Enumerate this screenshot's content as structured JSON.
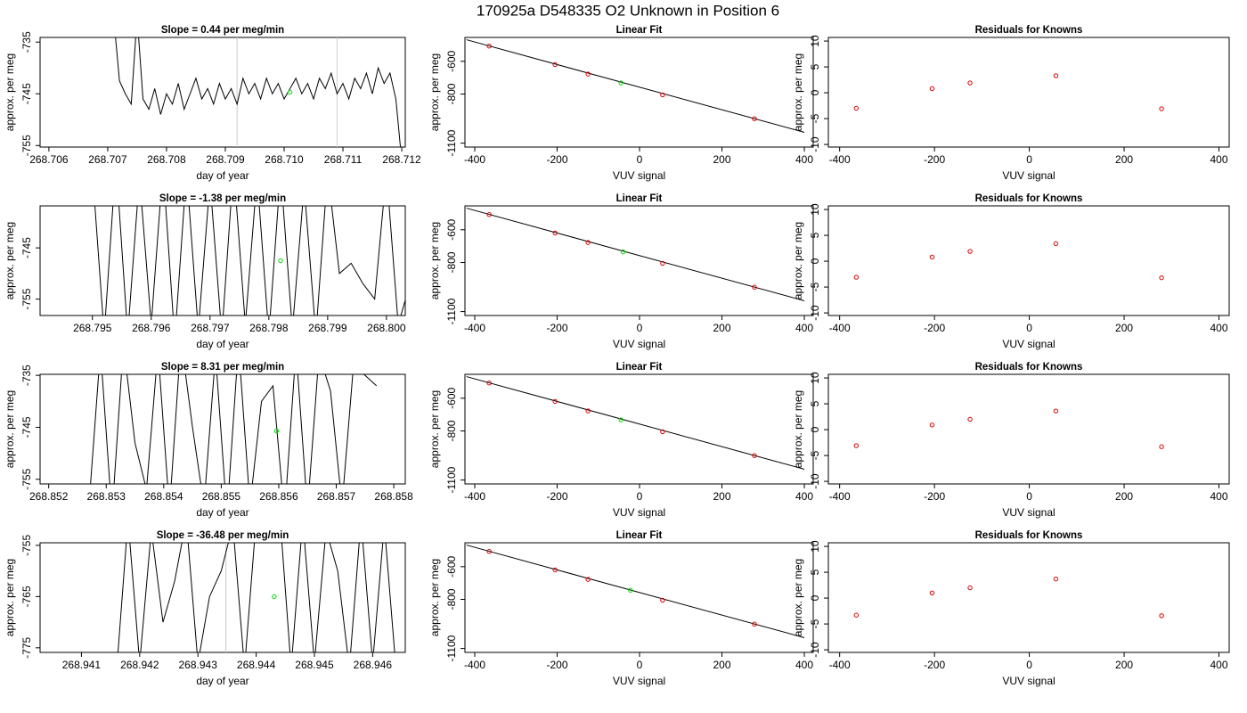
{
  "title": "170925a      D548335   O2 Unknown in Position  6",
  "chart_data": [
    {
      "type": "line",
      "title": "Slope =  0.44  per meg/min",
      "xlabel": "day of year",
      "ylabel": "approx. per meg",
      "xlim": [
        268.70585,
        268.71206
      ],
      "ylim": [
        -755.3,
        -734.1
      ],
      "xticks": [
        268.706,
        268.707,
        268.708,
        268.709,
        {
          "value": 268.71,
          "label": "268.710"
        },
        268.711,
        268.712
      ],
      "yticks": [
        -735,
        -745,
        -755
      ],
      "color": "#000000",
      "vlines": [
        268.7092,
        268.7109
      ],
      "vline_color": "#cccccc",
      "highlight": {
        "x": 268.7101,
        "y": -744.7,
        "color": "#00dd00"
      },
      "x": [
        268.7071,
        268.7072,
        268.7073,
        268.7074,
        268.7075,
        268.7076,
        268.7077,
        268.7078,
        268.7079,
        268.708,
        268.7081,
        268.7082,
        268.7083,
        268.7084,
        268.7085,
        268.7086,
        268.7087,
        268.7088,
        268.7089,
        268.709,
        268.7091,
        268.7092,
        268.7093,
        268.7094,
        268.7095,
        268.7096,
        268.7097,
        268.7098,
        268.7099,
        268.71,
        268.7101,
        268.7102,
        268.7103,
        268.7104,
        268.7105,
        268.7106,
        268.7107,
        268.7108,
        268.7109,
        268.711,
        268.7111,
        268.7112,
        268.7113,
        268.7114,
        268.7115,
        268.7116,
        268.7117,
        268.7118,
        268.7119,
        268.712
      ],
      "values": [
        -730,
        -742.5,
        -745,
        -747,
        -730,
        -746,
        -748,
        -744,
        -749,
        -745,
        -747,
        -743,
        -748,
        -745,
        -742,
        -746,
        -744,
        -747,
        -743,
        -746,
        -744,
        -747,
        -742,
        -745,
        -743,
        -746,
        -742,
        -745,
        -743,
        -746,
        -744,
        -742,
        -745,
        -743,
        -746,
        -742,
        -744,
        -741,
        -745,
        -743,
        -746,
        -742,
        -744,
        -741,
        -745,
        -740,
        -743,
        -741,
        -746,
        -758
      ]
    },
    {
      "type": "scatter",
      "title": "Linear Fit",
      "xlabel": "VUV signal",
      "ylabel": "approx. per meg",
      "xlim": [
        -423.8,
        421.6
      ],
      "ylim": [
        -1124,
        -454
      ],
      "xticks": [
        -400,
        -200,
        0,
        200,
        400
      ],
      "yticks": [
        -600,
        -800,
        -1100
      ],
      "color": "#dd0000",
      "x": [
        -365,
        -205,
        -125,
        56,
        279
      ],
      "values": [
        -507,
        -620,
        -678,
        -805,
        -951
      ],
      "highlight": {
        "x": -45,
        "y": -732,
        "color": "#00dd00"
      },
      "fit": {
        "x": [
          -420,
          400
        ],
        "y": [
          -468,
          -1034
        ]
      },
      "fit_color": "#000000"
    },
    {
      "type": "scatter",
      "title": "Residuals for Knowns",
      "xlabel": "VUV signal",
      "ylabel": "approx. per meg",
      "xlim": [
        -423.8,
        421.6
      ],
      "ylim": [
        -10.5,
        10.7
      ],
      "xticks": [
        -400,
        -200,
        0,
        200,
        400
      ],
      "yticks": [
        -10,
        -5,
        0,
        5,
        10
      ],
      "color": "#dd0000",
      "x": [
        -365,
        -205,
        -125,
        56,
        279
      ],
      "values": [
        -3,
        0.8,
        1.9,
        3.3,
        -3.1
      ]
    },
    {
      "type": "line",
      "title": "Slope =  -1.38  per meg/min",
      "xlabel": "day of year",
      "ylabel": "approx. per meg",
      "xlim": [
        268.79411,
        268.80032
      ],
      "ylim": [
        -758.2,
        -736.8
      ],
      "xticks": [
        268.795,
        268.796,
        268.797,
        268.798,
        268.799,
        {
          "value": 268.8,
          "label": "268.800"
        }
      ],
      "yticks": [
        -745,
        -755
      ],
      "color": "#000000",
      "highlight": {
        "x": 268.7982,
        "y": -747.5,
        "color": "#00dd00"
      },
      "x": [
        268.795,
        268.7952,
        268.7954,
        268.7956,
        268.7958,
        268.796,
        268.7962,
        268.7964,
        268.7966,
        268.7968,
        268.797,
        268.7972,
        268.7974,
        268.7976,
        268.7978,
        268.798,
        268.7982,
        268.7984,
        268.7986,
        268.7988,
        268.799,
        268.7992,
        268.7994,
        268.7996,
        268.7998,
        268.8,
        268.8002,
        268.8004
      ],
      "values": [
        -730,
        -762,
        -728,
        -762,
        -731,
        -760,
        -729,
        -763,
        -730,
        -761,
        -732,
        -762,
        -729,
        -760,
        -731,
        -762,
        -730,
        -761,
        -733,
        -762,
        -730,
        -750,
        -748,
        -752,
        -755,
        -730,
        -760,
        -752
      ]
    },
    {
      "type": "scatter",
      "title": "Linear Fit",
      "xlabel": "VUV signal",
      "ylabel": "approx. per meg",
      "xlim": [
        -423.8,
        421.6
      ],
      "ylim": [
        -1124,
        -454
      ],
      "xticks": [
        -400,
        -200,
        0,
        200,
        400
      ],
      "yticks": [
        -600,
        -800,
        -1100
      ],
      "color": "#dd0000",
      "x": [
        -365,
        -205,
        -125,
        56,
        279
      ],
      "values": [
        -507,
        -620,
        -678,
        -805,
        -951
      ],
      "highlight": {
        "x": -40,
        "y": -735,
        "color": "#00dd00"
      },
      "fit": {
        "x": [
          -420,
          400
        ],
        "y": [
          -468,
          -1034
        ]
      },
      "fit_color": "#000000"
    },
    {
      "type": "scatter",
      "title": "Residuals for Knowns",
      "xlabel": "VUV signal",
      "ylabel": "approx. per meg",
      "xlim": [
        -423.8,
        421.6
      ],
      "ylim": [
        -10.5,
        10.7
      ],
      "xticks": [
        -400,
        -200,
        0,
        200,
        400
      ],
      "yticks": [
        -10,
        -5,
        0,
        5,
        10
      ],
      "color": "#dd0000",
      "x": [
        -365,
        -205,
        -125,
        56,
        279
      ],
      "values": [
        -3.1,
        0.8,
        1.9,
        3.4,
        -3.2
      ]
    },
    {
      "type": "line",
      "title": "Slope =  8.31  per meg/min",
      "xlabel": "day of year",
      "ylabel": "approx. per meg",
      "xlim": [
        268.85185,
        268.8582
      ],
      "ylim": [
        -755.9,
        -734.8
      ],
      "xticks": [
        268.852,
        268.853,
        268.854,
        268.855,
        268.856,
        268.857,
        268.858
      ],
      "yticks": [
        -735,
        -745,
        -755
      ],
      "color": "#000000",
      "highlight": {
        "x": 268.85596,
        "y": -745.7,
        "color": "#00dd00"
      },
      "x": [
        268.8527,
        268.8529,
        268.8531,
        268.8533,
        268.8535,
        268.8537,
        268.8539,
        268.8541,
        268.8543,
        268.8545,
        268.8547,
        268.8549,
        268.8551,
        268.8553,
        268.8555,
        268.8557,
        268.8559,
        268.8561,
        268.8563,
        268.8565,
        268.8567,
        268.8569,
        268.8571,
        268.8573,
        268.8575,
        268.8577
      ],
      "values": [
        -760,
        -730,
        -762,
        -729,
        -748,
        -757,
        -730,
        -761,
        -728,
        -745,
        -760,
        -731,
        -762,
        -729,
        -760,
        -740,
        -737,
        -762,
        -730,
        -761,
        -731,
        -738,
        -760,
        -733,
        -735,
        -737
      ]
    },
    {
      "type": "scatter",
      "title": "Linear Fit",
      "xlabel": "VUV signal",
      "ylabel": "approx. per meg",
      "xlim": [
        -423.8,
        421.6
      ],
      "ylim": [
        -1124,
        -454
      ],
      "xticks": [
        -400,
        -200,
        0,
        200,
        400
      ],
      "yticks": [
        -600,
        -800,
        -1100
      ],
      "color": "#dd0000",
      "x": [
        -365,
        -205,
        -125,
        56,
        279
      ],
      "values": [
        -507,
        -620,
        -678,
        -805,
        -951
      ],
      "highlight": {
        "x": -45,
        "y": -732,
        "color": "#00dd00"
      },
      "fit": {
        "x": [
          -420,
          400
        ],
        "y": [
          -468,
          -1034
        ]
      },
      "fit_color": "#000000"
    },
    {
      "type": "scatter",
      "title": "Residuals for Knowns",
      "xlabel": "VUV signal",
      "ylabel": "approx. per meg",
      "xlim": [
        -423.8,
        421.6
      ],
      "ylim": [
        -10.5,
        10.7
      ],
      "xticks": [
        -400,
        -200,
        0,
        200,
        400
      ],
      "yticks": [
        -10,
        -5,
        0,
        5,
        10
      ],
      "color": "#dd0000",
      "x": [
        -365,
        -205,
        -125,
        56,
        279
      ],
      "values": [
        -3.1,
        0.9,
        2,
        3.6,
        -3.3
      ]
    },
    {
      "type": "line",
      "title": "Slope =  -36.48  per meg/min",
      "xlabel": "day of year",
      "ylabel": "approx. per meg",
      "xlim": [
        268.94029,
        268.94656
      ],
      "ylim": [
        -775.9,
        -754.5
      ],
      "xticks": [
        268.941,
        268.942,
        268.943,
        268.944,
        268.945,
        268.946
      ],
      "yticks": [
        -755,
        -765,
        -775
      ],
      "color": "#000000",
      "vlines": [
        268.94348
      ],
      "vline_color": "#cccccc",
      "highlight": {
        "x": 268.94431,
        "y": -765,
        "color": "#00dd00"
      },
      "x": [
        268.9416,
        268.9418,
        268.942,
        268.9422,
        268.9424,
        268.9426,
        268.9428,
        268.943,
        268.9432,
        268.9434,
        268.9436,
        268.9438,
        268.944,
        268.9442,
        268.9444,
        268.9446,
        268.9448,
        268.945,
        268.9452,
        268.9454,
        268.9456,
        268.9458,
        268.946,
        268.9462,
        268.9464
      ],
      "values": [
        -780,
        -750,
        -778,
        -752,
        -770,
        -762,
        -750,
        -778,
        -765,
        -760,
        -751,
        -779,
        -750,
        null,
        -748,
        -779,
        -750,
        -778,
        -752,
        -760,
        -779,
        -750,
        -778,
        -751,
        -779
      ]
    },
    {
      "type": "scatter",
      "title": "Linear Fit",
      "xlabel": "VUV signal",
      "ylabel": "approx. per meg",
      "xlim": [
        -423.8,
        421.6
      ],
      "ylim": [
        -1124,
        -454
      ],
      "xticks": [
        -400,
        -200,
        0,
        200,
        400
      ],
      "yticks": [
        -600,
        -800,
        -1100
      ],
      "color": "#dd0000",
      "x": [
        -365,
        -205,
        -125,
        56,
        279
      ],
      "values": [
        -507,
        -620,
        -678,
        -805,
        -951
      ],
      "highlight": {
        "x": -22,
        "y": -744,
        "color": "#00dd00"
      },
      "fit": {
        "x": [
          -420,
          400
        ],
        "y": [
          -468,
          -1034
        ]
      },
      "fit_color": "#000000"
    },
    {
      "type": "scatter",
      "title": "Residuals for Knowns",
      "xlabel": "VUV signal",
      "ylabel": "approx. per meg",
      "xlim": [
        -423.8,
        421.6
      ],
      "ylim": [
        -10.5,
        10.7
      ],
      "xticks": [
        -400,
        -200,
        0,
        200,
        400
      ],
      "yticks": [
        -10,
        -5,
        0,
        5,
        10
      ],
      "color": "#dd0000",
      "x": [
        -365,
        -205,
        -125,
        56,
        279
      ],
      "values": [
        -3.3,
        1,
        2,
        3.7,
        -3.4
      ]
    }
  ]
}
